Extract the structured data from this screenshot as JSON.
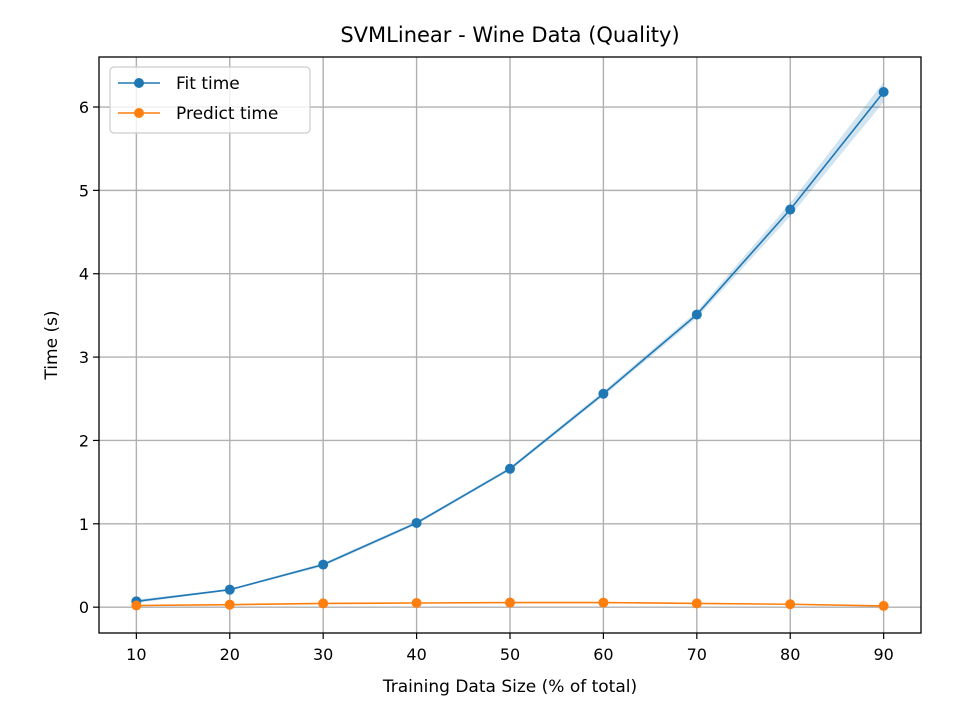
{
  "chart_data": {
    "type": "line",
    "title": "SVMLinear - Wine Data (Quality)",
    "xlabel": "Training Data Size (% of total)",
    "ylabel": "Time (s)",
    "x": [
      10,
      20,
      30,
      40,
      50,
      60,
      70,
      80,
      90
    ],
    "xlim": [
      6,
      94
    ],
    "ylim": [
      -0.31,
      6.6
    ],
    "xticks": [
      10,
      20,
      30,
      40,
      50,
      60,
      70,
      80,
      90
    ],
    "yticks": [
      0,
      1,
      2,
      3,
      4,
      5,
      6
    ],
    "grid": true,
    "legend_position": "top-left",
    "series": [
      {
        "name": "Fit time",
        "color": "#1f77b4",
        "values": [
          0.07,
          0.21,
          0.51,
          1.01,
          1.66,
          2.56,
          3.51,
          4.77,
          6.18
        ],
        "std": [
          0.02,
          0.01,
          0.02,
          0.02,
          0.02,
          0.03,
          0.04,
          0.08,
          0.12
        ]
      },
      {
        "name": "Predict time",
        "color": "#ff7f0e",
        "values": [
          0.02,
          0.03,
          0.045,
          0.05,
          0.055,
          0.055,
          0.045,
          0.035,
          0.015
        ],
        "std": [
          0.002,
          0.002,
          0.002,
          0.002,
          0.002,
          0.002,
          0.002,
          0.002,
          0.002
        ]
      }
    ]
  }
}
